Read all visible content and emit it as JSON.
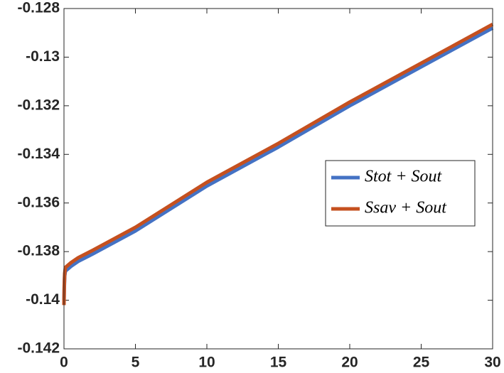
{
  "chart_data": {
    "type": "line",
    "x": [
      0,
      0.02,
      0.05,
      0.1,
      0.2,
      0.5,
      1,
      2,
      5,
      10,
      15,
      20,
      25,
      30
    ],
    "series": [
      {
        "name": "Stot + Sout",
        "color": "#4472c4",
        "values": [
          -0.14,
          -0.1395,
          -0.139,
          -0.1388,
          -0.13875,
          -0.1386,
          -0.1384,
          -0.1381,
          -0.13715,
          -0.1353,
          -0.1337,
          -0.132,
          -0.1304,
          -0.1288
        ]
      },
      {
        "name": "Ssav + Sout",
        "color": "#c5501f",
        "values": [
          -0.1402,
          -0.1394,
          -0.1389,
          -0.13865,
          -0.1386,
          -0.13845,
          -0.13825,
          -0.13795,
          -0.137,
          -0.13515,
          -0.13355,
          -0.13185,
          -0.13025,
          -0.12865
        ]
      }
    ],
    "xlim": [
      0,
      30
    ],
    "xticks": [
      0,
      5,
      10,
      15,
      20,
      25,
      30
    ],
    "ylim": [
      -0.142,
      -0.128
    ],
    "yticks": [
      -0.142,
      -0.14,
      -0.138,
      -0.136,
      -0.134,
      -0.132,
      -0.13,
      -0.128
    ],
    "legend": "right"
  }
}
